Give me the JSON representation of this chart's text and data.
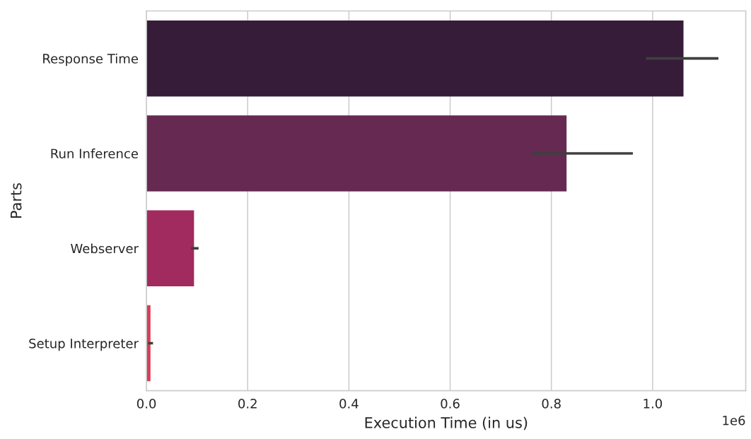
{
  "chart_data": {
    "type": "bar",
    "orientation": "horizontal",
    "xlabel": "Execution Time (in us)",
    "ylabel": "Parts",
    "categories": [
      "Response Time",
      "Run Inference",
      "Webserver",
      "Setup Interpreter"
    ],
    "values": [
      1.061,
      0.83,
      0.094,
      0.008
    ],
    "errors": [
      [
        0.987,
        1.13
      ],
      [
        0.761,
        0.961
      ],
      [
        0.088,
        0.103
      ],
      [
        0.003,
        0.013
      ]
    ],
    "colors": [
      "#361c39",
      "#662952",
      "#a12a5e",
      "#d63e57"
    ],
    "xlim": [
      0,
      1.184
    ],
    "xticks": [
      {
        "value": 0,
        "label": "0.0"
      },
      0.2,
      0.4,
      0.6,
      0.8,
      {
        "value": 1,
        "label": "1.0"
      }
    ],
    "annotations": [
      "1e6"
    ],
    "grid": "x"
  }
}
